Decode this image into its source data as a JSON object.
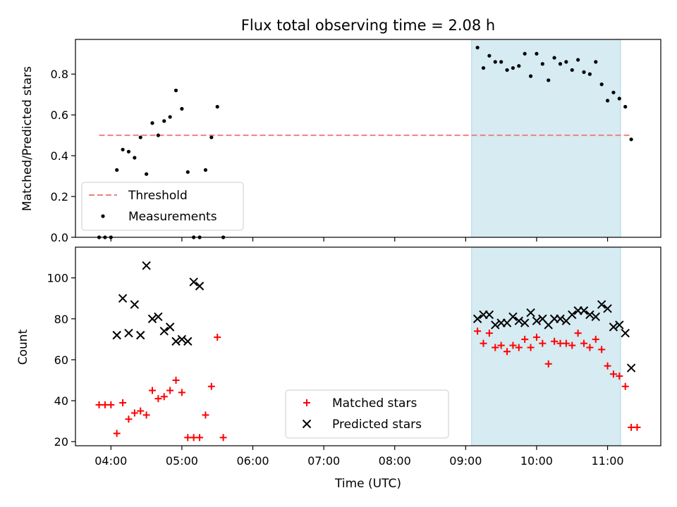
{
  "title": "Flux total observing time = 2.08 h",
  "colors": {
    "threshold": "#f08080",
    "measurements": "#000000",
    "matched": "#ff0000",
    "predicted": "#000000",
    "span": "#add8e6"
  },
  "chart_data": [
    {
      "type": "scatter",
      "ylabel": "Matched/Predicted stars",
      "ylim": [
        0,
        0.97
      ],
      "yticks": [
        0.0,
        0.2,
        0.4,
        0.6,
        0.8
      ],
      "ytick_labels": [
        "0.0",
        "0.2",
        "0.4",
        "0.6",
        "0.8"
      ],
      "xlim": [
        "03:30",
        "11:45"
      ],
      "legend_position": "lower-left",
      "shaded_span": [
        "09:05",
        "11:11"
      ],
      "threshold": {
        "name": "Threshold",
        "value": 0.5,
        "x_range": [
          "03:50",
          "11:20"
        ]
      },
      "series": [
        {
          "name": "Measurements",
          "x": [
            "03:50",
            "03:55",
            "04:00",
            "04:05",
            "04:10",
            "04:15",
            "04:20",
            "04:25",
            "04:30",
            "04:35",
            "04:40",
            "04:45",
            "04:50",
            "04:55",
            "05:00",
            "05:05",
            "05:10",
            "05:15",
            "05:20",
            "05:25",
            "05:30",
            "05:35",
            "09:10",
            "09:15",
            "09:20",
            "09:25",
            "09:30",
            "09:35",
            "09:40",
            "09:45",
            "09:50",
            "09:55",
            "10:00",
            "10:05",
            "10:10",
            "10:15",
            "10:20",
            "10:25",
            "10:30",
            "10:35",
            "10:40",
            "10:45",
            "10:50",
            "10:55",
            "11:00",
            "11:05",
            "11:10",
            "11:15",
            "11:20"
          ],
          "y": [
            0.0,
            0.0,
            0.0,
            0.33,
            0.43,
            0.42,
            0.39,
            0.49,
            0.31,
            0.56,
            0.5,
            0.57,
            0.59,
            0.72,
            0.63,
            0.32,
            0.0,
            0.0,
            0.33,
            0.49,
            0.64,
            0.0,
            0.93,
            0.83,
            0.89,
            0.86,
            0.86,
            0.82,
            0.83,
            0.84,
            0.9,
            0.79,
            0.9,
            0.85,
            0.77,
            0.88,
            0.85,
            0.86,
            0.82,
            0.87,
            0.81,
            0.8,
            0.86,
            0.75,
            0.67,
            0.71,
            0.68,
            0.64,
            0.48
          ]
        }
      ]
    },
    {
      "type": "scatter",
      "xlabel": "Time (UTC)",
      "ylabel": "Count",
      "ylim": [
        18,
        115
      ],
      "yticks": [
        20,
        40,
        60,
        80,
        100
      ],
      "xlim": [
        "03:30",
        "11:45"
      ],
      "xticks": [
        "04:00",
        "05:00",
        "06:00",
        "07:00",
        "08:00",
        "09:00",
        "10:00",
        "11:00"
      ],
      "legend_position": "lower-center",
      "shaded_span": [
        "09:05",
        "11:11"
      ],
      "series": [
        {
          "name": "Matched stars",
          "x": [
            "03:50",
            "03:55",
            "04:00",
            "04:05",
            "04:10",
            "04:15",
            "04:20",
            "04:25",
            "04:30",
            "04:35",
            "04:40",
            "04:45",
            "04:50",
            "04:55",
            "05:00",
            "05:05",
            "05:10",
            "05:15",
            "05:20",
            "05:25",
            "05:30",
            "05:35",
            "09:10",
            "09:15",
            "09:20",
            "09:25",
            "09:30",
            "09:35",
            "09:40",
            "09:45",
            "09:50",
            "09:55",
            "10:00",
            "10:05",
            "10:10",
            "10:15",
            "10:20",
            "10:25",
            "10:30",
            "10:35",
            "10:40",
            "10:45",
            "10:50",
            "10:55",
            "11:00",
            "11:05",
            "11:10",
            "11:15",
            "11:20",
            "11:25"
          ],
          "y": [
            38,
            38,
            38,
            24,
            39,
            31,
            34,
            35,
            33,
            45,
            41,
            42,
            45,
            50,
            44,
            22,
            22,
            22,
            33,
            47,
            71,
            22,
            74,
            68,
            73,
            66,
            67,
            64,
            67,
            66,
            70,
            66,
            71,
            68,
            58,
            69,
            68,
            68,
            67,
            73,
            68,
            66,
            70,
            65,
            57,
            53,
            52,
            47,
            27,
            27
          ]
        },
        {
          "name": "Predicted stars",
          "x": [
            "04:05",
            "04:10",
            "04:15",
            "04:20",
            "04:25",
            "04:30",
            "04:35",
            "04:40",
            "04:45",
            "04:50",
            "04:55",
            "05:00",
            "05:05",
            "05:10",
            "05:15",
            "09:10",
            "09:15",
            "09:20",
            "09:25",
            "09:30",
            "09:35",
            "09:40",
            "09:45",
            "09:50",
            "09:55",
            "10:00",
            "10:05",
            "10:10",
            "10:15",
            "10:20",
            "10:25",
            "10:30",
            "10:35",
            "10:40",
            "10:45",
            "10:50",
            "10:55",
            "11:00",
            "11:05",
            "11:10",
            "11:15",
            "11:20"
          ],
          "y": [
            72,
            90,
            73,
            87,
            72,
            106,
            80,
            81,
            74,
            76,
            69,
            70,
            69,
            98,
            96,
            80,
            82,
            82,
            77,
            78,
            78,
            81,
            79,
            78,
            83,
            79,
            80,
            77,
            80,
            80,
            79,
            82,
            84,
            84,
            82,
            81,
            87,
            85,
            76,
            77,
            73,
            56
          ]
        }
      ]
    }
  ]
}
